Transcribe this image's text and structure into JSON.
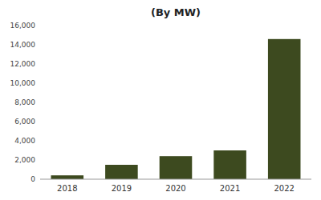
{
  "chart_data": {
    "type": "bar",
    "title": "(By MW)",
    "categories": [
      "2018",
      "2019",
      "2020",
      "2021",
      "2022"
    ],
    "values": [
      400,
      1500,
      2400,
      3000,
      14600
    ],
    "color": "#3d4a1f",
    "ylim": [
      0,
      16000
    ],
    "yticks": [
      0,
      {
        "value": 2000,
        "label": "2,000"
      },
      {
        "value": 4000,
        "label": "4,000"
      },
      {
        "value": 6000,
        "label": "6,000"
      },
      {
        "value": 8000,
        "label": "8,000"
      },
      {
        "value": 10000,
        "label": "10,000"
      },
      {
        "value": 12000,
        "label": "12,000"
      },
      {
        "value": 14000,
        "label": "14,000"
      },
      {
        "value": 16000,
        "label": "16,000"
      }
    ],
    "grid": false
  }
}
